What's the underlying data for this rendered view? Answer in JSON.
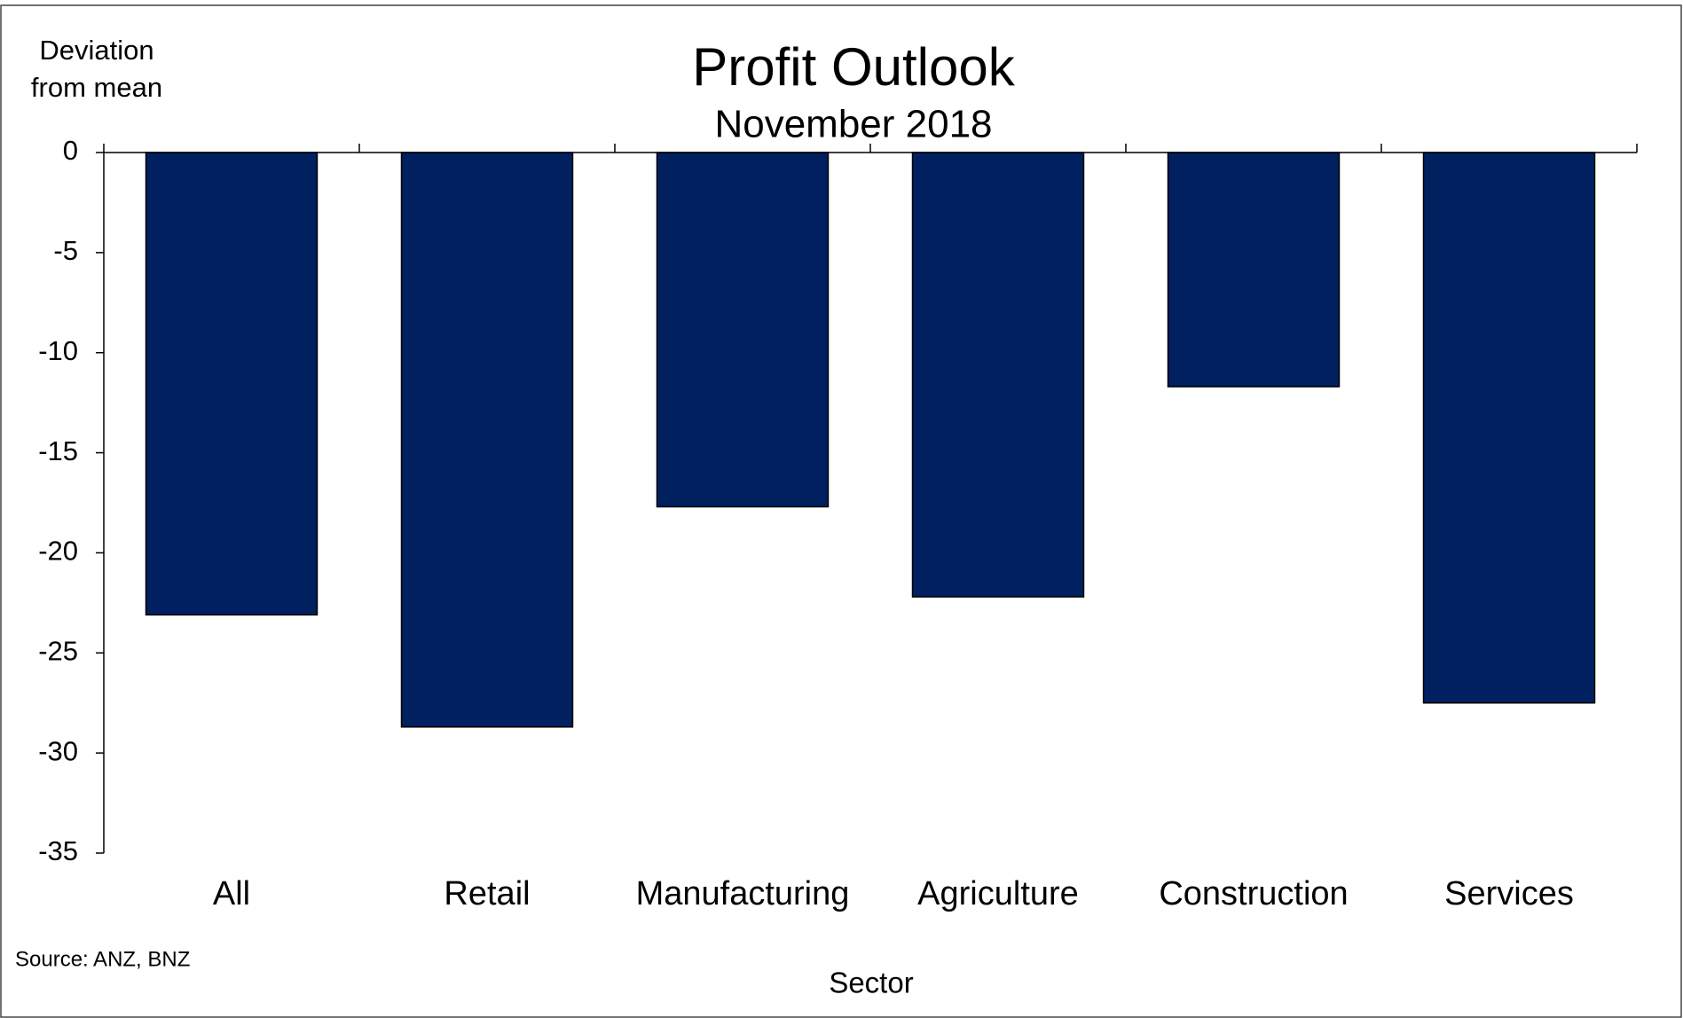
{
  "chart_data": {
    "type": "bar",
    "title": "Profit Outlook",
    "subtitle": "November 2018",
    "y_label": "Deviation from mean",
    "x_label": "Sector",
    "source": "Source: ANZ, BNZ",
    "categories": [
      "All",
      "Retail",
      "Manufacturing",
      "Agriculture",
      "Construction",
      "Services"
    ],
    "values": [
      -23.1,
      -28.7,
      -17.7,
      -22.2,
      -11.7,
      -27.5
    ],
    "color": "#002060",
    "ylim": [
      -35,
      0
    ],
    "yticks": [
      0,
      -5,
      -10,
      -15,
      -20,
      -25,
      -30,
      -35
    ],
    "grid": false
  }
}
